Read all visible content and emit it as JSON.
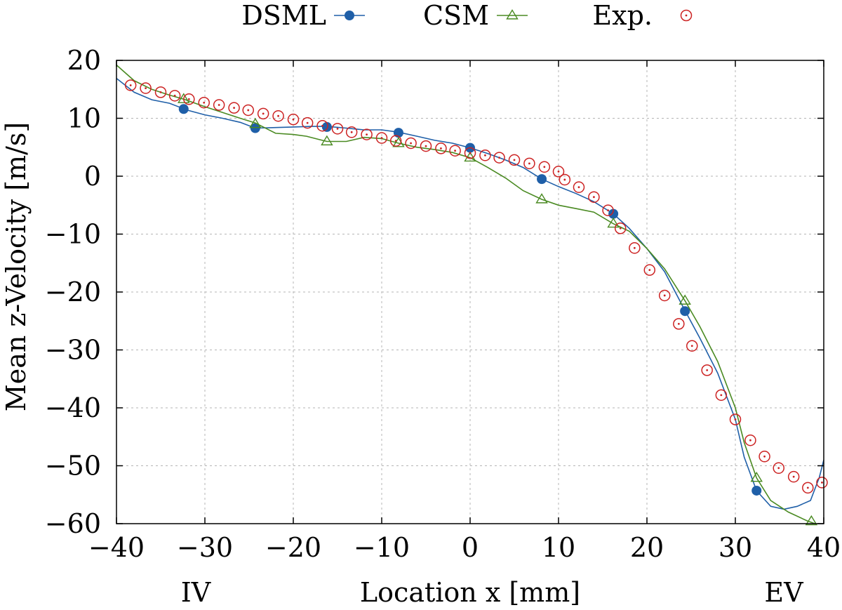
{
  "chart_data": {
    "type": "line",
    "title": "",
    "xlabel": "Location x [mm]",
    "ylabel": "Mean z-Velocity [m/s]",
    "xlim": [
      -40,
      40
    ],
    "ylim": [
      -60,
      20
    ],
    "xticks": [
      -40,
      -30,
      -20,
      -10,
      0,
      10,
      20,
      30,
      40
    ],
    "yticks": [
      20,
      10,
      0,
      -10,
      -20,
      -30,
      -40,
      -50,
      -60
    ],
    "xtick_labels": [
      "−40",
      "−30",
      "−20",
      "−10",
      "0",
      "10",
      "20",
      "30",
      "40"
    ],
    "ytick_labels": [
      "20",
      "10",
      "0",
      "−10",
      "−20",
      "−30",
      "−40",
      "−50",
      "−60"
    ],
    "grid": true,
    "legend_position": "top",
    "annotations": {
      "left": "IV",
      "right": "EV"
    },
    "series": [
      {
        "name": "DSML",
        "color": "#1f5fa8",
        "marker": "filled-circle",
        "line": [
          [
            -40,
            16.9
          ],
          [
            -38,
            14.5
          ],
          [
            -36,
            13.2
          ],
          [
            -34,
            12.6
          ],
          [
            -32,
            11.4
          ],
          [
            -30,
            10.6
          ],
          [
            -28,
            10.0
          ],
          [
            -26,
            9.3
          ],
          [
            -24.3,
            8.3
          ],
          [
            -22,
            8.4
          ],
          [
            -20,
            8.5
          ],
          [
            -18,
            8.6
          ],
          [
            -16.2,
            8.6
          ],
          [
            -14,
            8.3
          ],
          [
            -12,
            8.0
          ],
          [
            -10,
            8.0
          ],
          [
            -8.1,
            7.6
          ],
          [
            -6,
            6.9
          ],
          [
            -4,
            6.2
          ],
          [
            -2,
            5.7
          ],
          [
            0,
            4.9
          ],
          [
            2,
            3.9
          ],
          [
            4,
            2.8
          ],
          [
            6,
            1.5
          ],
          [
            8.1,
            -0.5
          ],
          [
            10,
            -1.8
          ],
          [
            12,
            -3.0
          ],
          [
            14,
            -4.4
          ],
          [
            16.2,
            -6.5
          ],
          [
            18,
            -9.0
          ],
          [
            20,
            -12.5
          ],
          [
            22,
            -16.5
          ],
          [
            24.3,
            -23.2
          ],
          [
            26,
            -28.0
          ],
          [
            28,
            -34.0
          ],
          [
            30,
            -42.0
          ],
          [
            31,
            -48.5
          ],
          [
            32.4,
            -54.3
          ],
          [
            34,
            -57.0
          ],
          [
            35.5,
            -57.5
          ],
          [
            37,
            -57.0
          ],
          [
            38.5,
            -56.0
          ],
          [
            39.5,
            -52.0
          ],
          [
            40,
            -49.0
          ]
        ],
        "markers": [
          [
            -32.4,
            11.6
          ],
          [
            -24.3,
            8.3
          ],
          [
            -16.2,
            8.5
          ],
          [
            -8.1,
            7.5
          ],
          [
            0,
            4.9
          ],
          [
            8.1,
            -0.5
          ],
          [
            16.2,
            -6.5
          ],
          [
            24.3,
            -23.3
          ],
          [
            32.4,
            -54.3
          ]
        ]
      },
      {
        "name": "CSM",
        "color": "#4a8a22",
        "marker": "open-triangle",
        "line": [
          [
            -40,
            19.2
          ],
          [
            -38,
            16.5
          ],
          [
            -36,
            15.0
          ],
          [
            -34,
            14.0
          ],
          [
            -32.4,
            13.3
          ],
          [
            -30,
            12.0
          ],
          [
            -28,
            11.0
          ],
          [
            -26,
            10.0
          ],
          [
            -24.3,
            9.2
          ],
          [
            -22,
            7.4
          ],
          [
            -20,
            7.2
          ],
          [
            -18.5,
            6.9
          ],
          [
            -17,
            6.3
          ],
          [
            -16.2,
            6.0
          ],
          [
            -14,
            6.0
          ],
          [
            -12,
            6.7
          ],
          [
            -10,
            6.5
          ],
          [
            -8.1,
            5.7
          ],
          [
            -6,
            5.0
          ],
          [
            -4,
            4.6
          ],
          [
            -2,
            4.1
          ],
          [
            0,
            3.2
          ],
          [
            2,
            1.5
          ],
          [
            4,
            -0.3
          ],
          [
            6,
            -2.5
          ],
          [
            8.1,
            -4.0
          ],
          [
            10,
            -5.0
          ],
          [
            12,
            -5.6
          ],
          [
            14,
            -6.2
          ],
          [
            16.2,
            -8.2
          ],
          [
            18,
            -9.5
          ],
          [
            20,
            -12.5
          ],
          [
            22,
            -16.0
          ],
          [
            24.3,
            -21.5
          ],
          [
            26,
            -26.0
          ],
          [
            28,
            -32.0
          ],
          [
            30,
            -40.0
          ],
          [
            31,
            -46.0
          ],
          [
            32.4,
            -52.1
          ],
          [
            34,
            -56.0
          ],
          [
            36,
            -58.0
          ],
          [
            38.1,
            -59.5
          ],
          [
            39,
            -60.0
          ]
        ],
        "markers": [
          [
            -32.4,
            13.3
          ],
          [
            -24.3,
            9.0
          ],
          [
            -16.2,
            6.0
          ],
          [
            -8.1,
            5.7
          ],
          [
            0,
            3.2
          ],
          [
            8.1,
            -4.0
          ],
          [
            16.2,
            -8.2
          ],
          [
            24.3,
            -21.5
          ],
          [
            32.4,
            -52.1
          ],
          [
            38.6,
            -59.6
          ]
        ]
      },
      {
        "name": "Exp.",
        "color": "#cc2222",
        "marker": "open-circle-dot",
        "points": [
          [
            -38.4,
            15.7
          ],
          [
            -36.7,
            15.2
          ],
          [
            -35,
            14.5
          ],
          [
            -33.4,
            13.9
          ],
          [
            -31.8,
            13.3
          ],
          [
            -30.1,
            12.7
          ],
          [
            -28.4,
            12.3
          ],
          [
            -26.7,
            11.8
          ],
          [
            -25.1,
            11.4
          ],
          [
            -23.4,
            10.8
          ],
          [
            -21.7,
            10.4
          ],
          [
            -20,
            9.8
          ],
          [
            -18.4,
            9.2
          ],
          [
            -16.7,
            8.7
          ],
          [
            -15,
            8.2
          ],
          [
            -13.4,
            7.6
          ],
          [
            -11.7,
            7.2
          ],
          [
            -10,
            6.6
          ],
          [
            -8.4,
            6.1
          ],
          [
            -6.7,
            5.7
          ],
          [
            -5,
            5.2
          ],
          [
            -3.3,
            4.8
          ],
          [
            -1.7,
            4.4
          ],
          [
            0,
            4.0
          ],
          [
            1.7,
            3.6
          ],
          [
            3.3,
            3.2
          ],
          [
            5,
            2.8
          ],
          [
            6.7,
            2.2
          ],
          [
            8.4,
            1.6
          ],
          [
            10,
            0.8
          ],
          [
            10.7,
            -0.6
          ],
          [
            12.3,
            -1.9
          ],
          [
            14,
            -3.6
          ],
          [
            15.6,
            -5.9
          ],
          [
            17,
            -9.0
          ],
          [
            18.6,
            -12.4
          ],
          [
            20.3,
            -16.2
          ],
          [
            22,
            -20.6
          ],
          [
            23.6,
            -25.5
          ],
          [
            25.1,
            -29.3
          ],
          [
            26.8,
            -33.5
          ],
          [
            28.4,
            -37.8
          ],
          [
            30,
            -42.0
          ],
          [
            31.7,
            -45.6
          ],
          [
            33.3,
            -48.4
          ],
          [
            34.9,
            -50.4
          ],
          [
            36.6,
            -51.9
          ],
          [
            38.2,
            -53.8
          ],
          [
            39.8,
            -52.9
          ]
        ]
      }
    ]
  }
}
